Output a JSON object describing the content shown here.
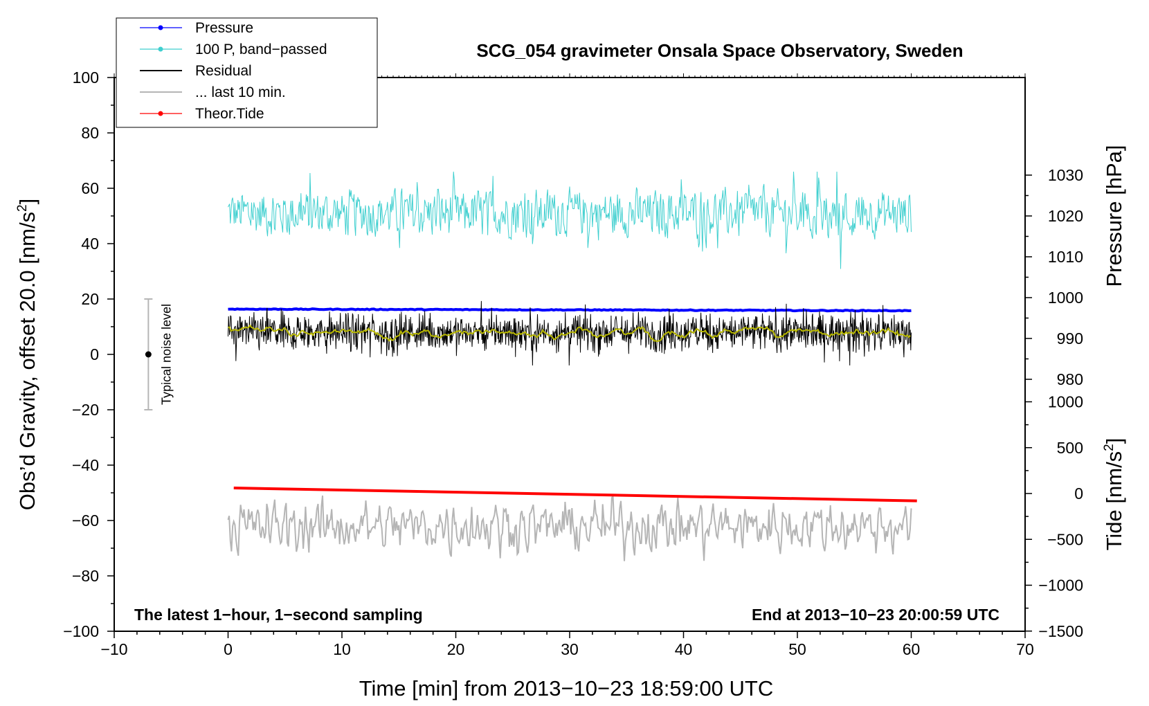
{
  "chart_data": {
    "type": "line",
    "title": "SCG_054 gravimeter Onsala Space Observatory, Sweden",
    "xlabel": "Time [min] from 2013−10−23 18:59:00 UTC",
    "ylabel": "Obs’d Gravity, offset 20.0 [nm/s",
    "ylabel_sup": "2",
    "ylabel_end": "]",
    "xlim": [
      -10,
      70
    ],
    "ylim": [
      -100,
      100
    ],
    "x_ticks": [
      "−10",
      "0",
      "10",
      "20",
      "30",
      "40",
      "50",
      "60",
      "70"
    ],
    "y_ticks": [
      "100",
      "80",
      "60",
      "40",
      "20",
      "0",
      "−20",
      "−40",
      "−60",
      "−80",
      "−100"
    ],
    "right_axes": {
      "pressure": {
        "label": "Pressure [hPa]",
        "ticks": [
          "1030",
          "1020",
          "1010",
          "1000",
          "990",
          "980"
        ],
        "range": [
          975,
          1035
        ]
      },
      "tide": {
        "label": "Tide [nm/s",
        "label_sup": "2",
        "label_end": "]",
        "ticks": [
          "1000",
          "500",
          "0",
          "−500",
          "−1000",
          "−1500"
        ],
        "range": [
          -1500,
          1000
        ]
      }
    },
    "series": [
      {
        "name": "Pressure",
        "color": "#0000ff",
        "axis": "pressure",
        "x_range": [
          0,
          60
        ],
        "start": 997.2,
        "end": 996.8,
        "noise_amp": 0.2
      },
      {
        "name": "100 P, band−passed",
        "color": "#3fcfcf",
        "axis": "gravity",
        "x_range": [
          0,
          60
        ],
        "center": 51,
        "noise_amp": 6,
        "max": 66,
        "min": 27
      },
      {
        "name": "Residual",
        "color": "#000000",
        "axis": "gravity",
        "x_range": [
          0,
          60
        ],
        "center": 8,
        "noise_amp": 5,
        "max": 21,
        "min": -4
      },
      {
        "name": "Residual smoothed",
        "color": "#b8b800",
        "axis": "gravity",
        "x_range": [
          0,
          60
        ],
        "center": 8,
        "noise_amp": 1.5
      },
      {
        "name": "... last 10 min.",
        "color": "#b5b5b5",
        "axis": "gravity",
        "x_range": [
          0,
          60
        ],
        "center": -62,
        "noise_amp": 4,
        "max": -51,
        "min": -76
      },
      {
        "name": "Theor.Tide",
        "color": "#ff0000",
        "axis": "tide",
        "x_range": [
          0.5,
          60.5
        ],
        "start": 60,
        "end": -80
      }
    ],
    "noise_bar": {
      "label": "Typical noise level",
      "x": -7,
      "center": 0,
      "low": -20,
      "high": 20
    },
    "annotations": {
      "left": "The latest 1−hour, 1−second sampling",
      "right": "End at 2013−10−23 20:00:59 UTC"
    },
    "legend": {
      "placement": "top-left",
      "items": [
        {
          "label": "Pressure",
          "color": "#0000ff",
          "marker": true
        },
        {
          "label": "100 P, band−passed",
          "color": "#3fcfcf",
          "marker": true
        },
        {
          "label": "Residual",
          "color": "#000000",
          "marker": false
        },
        {
          "label": "... last 10 min.",
          "color": "#b5b5b5",
          "marker": false
        },
        {
          "label": "Theor.Tide",
          "color": "#ff0000",
          "marker": true
        }
      ]
    }
  }
}
